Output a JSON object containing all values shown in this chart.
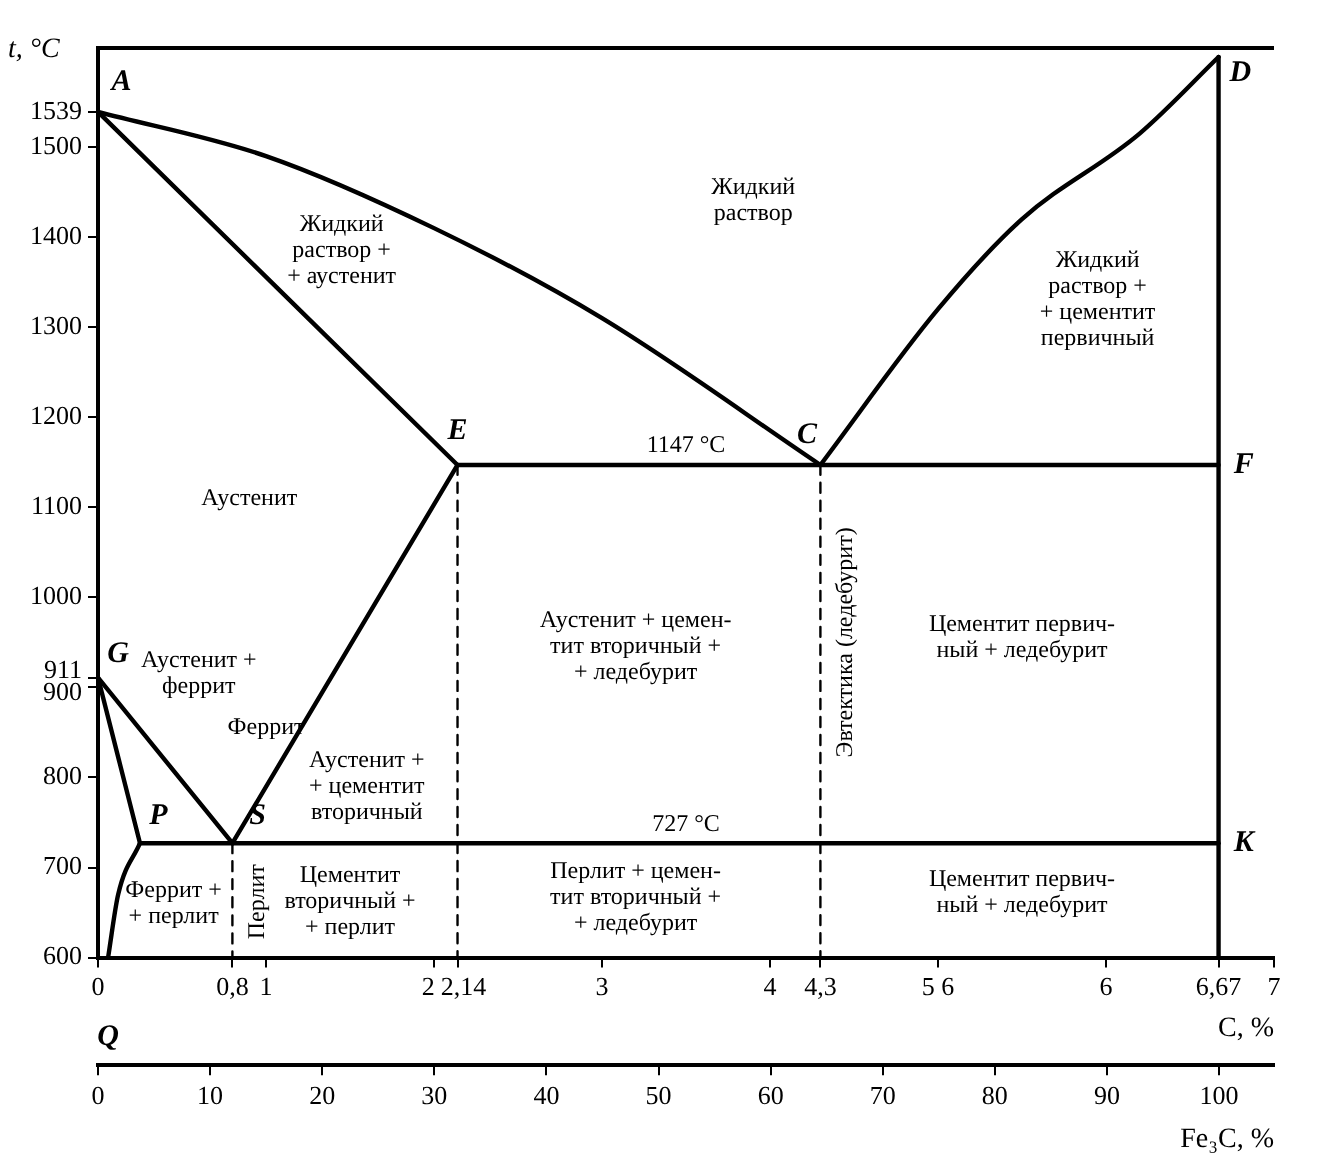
{
  "chart_data": {
    "type": "line",
    "xlabel": "C, %",
    "ylabel": "t, °C",
    "x2label": "Fe₃C, %",
    "xlim": [
      0,
      7
    ],
    "xticks": [
      0,
      {
        "value": 0.8,
        "label": "0,8"
      },
      1,
      2,
      {
        "value": 2.14,
        "label": "2,14"
      },
      3,
      4,
      {
        "value": 4.3,
        "label": "4,3"
      },
      {
        "value": 5,
        "label": "5 6"
      },
      6,
      {
        "value": 6.67,
        "label": "6,67"
      },
      7
    ],
    "x2lim": [
      0,
      104.9
    ],
    "x2ticks": [
      0,
      10,
      20,
      30,
      40,
      50,
      60,
      70,
      80,
      90,
      100
    ],
    "ylim": [
      600,
      1610
    ],
    "yticks": [
      600,
      700,
      800,
      900,
      911,
      1000,
      1100,
      1200,
      1300,
      1400,
      1500,
      1539
    ],
    "grid": false,
    "legend": false,
    "marker": "none",
    "line_style": "solid",
    "series": [
      {
        "color": "#000000",
        "x": [
          0,
          1,
          2,
          3,
          4.3
        ],
        "values": [
          1539,
          1490,
          1410,
          1310,
          1147
        ]
      },
      {
        "color": "#000000",
        "x": [
          4.3,
          5,
          5.5,
          6.2,
          6.67
        ],
        "values": [
          1147,
          1320,
          1420,
          1515,
          1600
        ]
      },
      {
        "color": "#000000",
        "x": [
          0,
          2.14
        ],
        "values": [
          1539,
          1147
        ]
      },
      {
        "color": "#000000",
        "x": [
          2.14,
          6.67
        ],
        "values": [
          1147,
          1147
        ]
      },
      {
        "color": "#000000",
        "x": [
          6.67,
          6.67
        ],
        "values": [
          1600,
          600
        ]
      },
      {
        "color": "#000000",
        "x": [
          0.8,
          2.14
        ],
        "values": [
          727,
          1147
        ]
      },
      {
        "color": "#000000",
        "x": [
          0,
          0.8
        ],
        "values": [
          911,
          727
        ]
      },
      {
        "color": "#000000",
        "x": [
          0,
          0.25
        ],
        "values": [
          911,
          727
        ]
      },
      {
        "color": "#000000",
        "x": [
          0.06,
          0.12,
          0.25
        ],
        "values": [
          600,
          670,
          727
        ]
      },
      {
        "color": "#000000",
        "x": [
          0.25,
          6.67
        ],
        "values": [
          727,
          727
        ]
      },
      {
        "color": "#000000",
        "line_style": "dashed",
        "x": [
          0.8,
          0.8
        ],
        "values": [
          727,
          600
        ]
      },
      {
        "color": "#000000",
        "line_style": "dashed",
        "x": [
          2.14,
          2.14
        ],
        "values": [
          1147,
          600
        ]
      },
      {
        "color": "#000000",
        "line_style": "dashed",
        "x": [
          4.3,
          4.3
        ],
        "values": [
          1147,
          600
        ]
      }
    ],
    "annotations": [
      "A",
      "D",
      "C",
      "E",
      "F",
      "G",
      "K",
      "P",
      "S",
      "Q",
      "Жидкий\nраствор +\n+ аустенит",
      "Жидкий\nраствор",
      "Жидкий\nраствор +\n+ цементит\nпервичный",
      "Аустенит",
      "1147 °C",
      "Аустенит +\nферрит",
      "Феррит",
      "Аустенит +\n+ цементит\nвторичный",
      "727 °C",
      "Аустенит + цемен-\nтит вторичный +\n+ ледебурит",
      "Эвтектика (ледебурит)",
      "Цементит первич-\nный + ледебурит",
      "Феррит +\n+ перлит",
      "Перлит",
      "Цементит\nвторичный +\n+ перлит",
      "Перлит + цемен-\nтит вторичный +\n+ ледебурит",
      "Цементит первич-\nный + ледебурит"
    ]
  }
}
